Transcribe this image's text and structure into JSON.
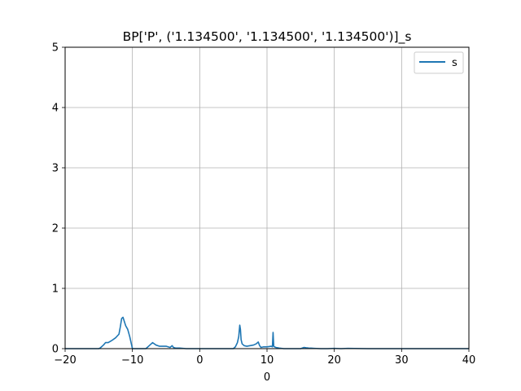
{
  "chart_data": {
    "type": "line",
    "title": "BP['P', ('1.134500', '1.134500', '1.134500')]_s",
    "xlabel": "0",
    "ylabel": "",
    "xlim": [
      -20,
      40
    ],
    "ylim": [
      0,
      5
    ],
    "xticks": [
      -20,
      -10,
      0,
      10,
      20,
      30,
      40
    ],
    "yticks": [
      0,
      1,
      2,
      3,
      4,
      5
    ],
    "grid": true,
    "legend": {
      "position": "top-right"
    },
    "series": [
      {
        "name": "s",
        "color": "#1f77b4",
        "x": [
          -20,
          -15,
          -14.8,
          -14.3,
          -14,
          -13.6,
          -13,
          -12.5,
          -12,
          -11.8,
          -11.6,
          -11.4,
          -11.2,
          -11,
          -10.7,
          -10.4,
          -10.2,
          -10,
          -9,
          -8,
          -7.6,
          -7.3,
          -7,
          -6.5,
          -6,
          -5,
          -4.4,
          -4.1,
          -3.9,
          -3.6,
          -3,
          -2,
          -1,
          0,
          1,
          2,
          3,
          4,
          5,
          5.3,
          5.6,
          5.8,
          5.95,
          6.05,
          6.15,
          6.3,
          6.6,
          7,
          7.5,
          8,
          8.4,
          8.7,
          8.9,
          9.1,
          9.5,
          10,
          10.6,
          10.8,
          10.9,
          11,
          11.1,
          11.3,
          11.8,
          12.5,
          13,
          14,
          15,
          15.5,
          15.8,
          16.2,
          17,
          18,
          19,
          20,
          21,
          22,
          25,
          30,
          35,
          40
        ],
        "y": [
          0,
          0,
          0.01,
          0.06,
          0.1,
          0.1,
          0.14,
          0.18,
          0.24,
          0.36,
          0.5,
          0.52,
          0.45,
          0.38,
          0.32,
          0.2,
          0.1,
          0.0,
          0.0,
          0.0,
          0.04,
          0.07,
          0.1,
          0.06,
          0.04,
          0.04,
          0.02,
          0.05,
          0.02,
          0.01,
          0.01,
          0.0,
          0.0,
          0.0,
          0.0,
          0.0,
          0.0,
          0.0,
          0.0,
          0.03,
          0.1,
          0.2,
          0.39,
          0.32,
          0.15,
          0.08,
          0.05,
          0.04,
          0.05,
          0.06,
          0.08,
          0.11,
          0.05,
          0.02,
          0.03,
          0.03,
          0.04,
          0.03,
          0.27,
          0.04,
          0.03,
          0.02,
          0.01,
          0.0,
          0.0,
          0.0,
          0.0,
          0.02,
          0.015,
          0.01,
          0.005,
          0.0,
          0.0,
          0.005,
          0.0,
          0.005,
          0.0,
          0.0,
          0.0,
          0.0
        ]
      }
    ]
  }
}
